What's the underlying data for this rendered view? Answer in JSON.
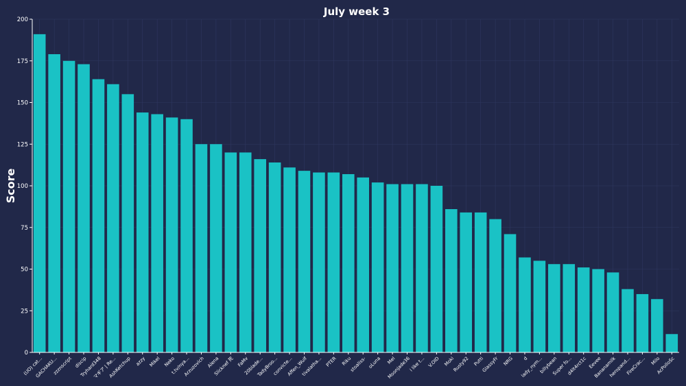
{
  "chart_data": {
    "type": "bar",
    "title": "July week 3",
    "xlabel": "",
    "ylabel": "Score",
    "ylim": [
      0,
      200
    ],
    "yticks": [
      0,
      25,
      50,
      75,
      100,
      125,
      150,
      175,
      200
    ],
    "grid": true,
    "legend": "none",
    "bar_color": "#1ac2c5",
    "background_color": "#212849",
    "categories": [
      "(UO) cat...",
      "GACHAKU...",
      "zzznscript",
      "discip",
      "Tryhard348",
      "マギア | Re...",
      "AshKetchup",
      "azzy",
      "Mikel",
      "Neko",
      "t.tv/nya...",
      "Arzuzovich",
      "Alena",
      "Slicknef 死",
      "FaMv",
      "20blade...",
      "TadyBroo...",
      "convicte...",
      "Affen_Wulf",
      "tivalatha...",
      "PTER",
      "Riku",
      "stoaliss-",
      "oLuna",
      "Mel",
      "Moonjade36",
      "i like t...",
      "V.OID",
      "Moki",
      "Rusty92",
      "Putti",
      "GlassyFr",
      "NRG",
      "d",
      "lady_nym...",
      "billybean",
      "Super fo...",
      "d4lt4rct1c",
      "Eevee",
      "Bananamilk",
      "heropand...",
      "FireCrac...",
      "Milo",
      "AcPolloSc"
    ],
    "values": [
      191,
      179,
      175,
      173,
      164,
      161,
      155,
      144,
      143,
      141,
      140,
      125,
      125,
      120,
      120,
      116,
      114,
      111,
      109,
      108,
      108,
      107,
      105,
      102,
      101,
      101,
      101,
      100,
      86,
      84,
      84,
      80,
      71,
      57,
      55,
      53,
      53,
      51,
      50,
      48,
      38,
      35,
      32,
      11
    ]
  }
}
